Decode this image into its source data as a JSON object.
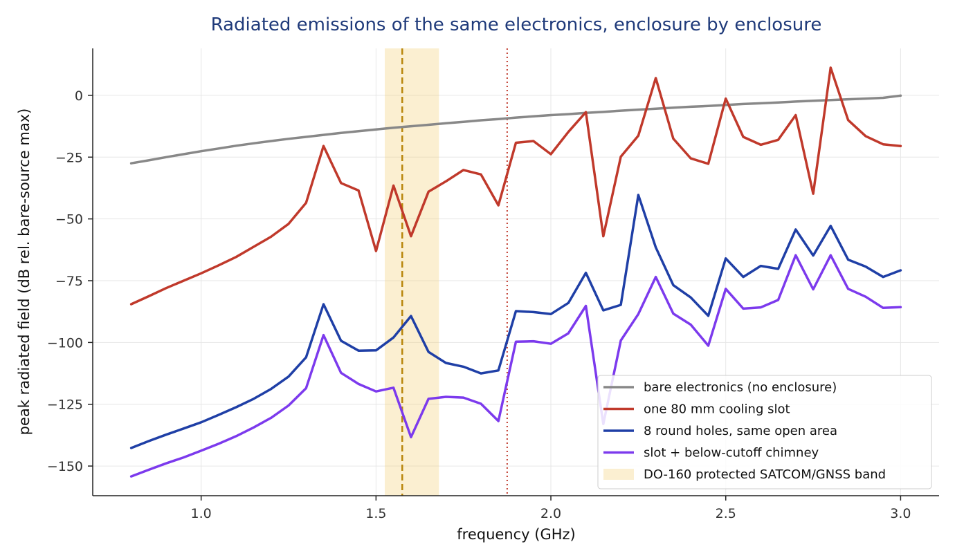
{
  "chart_data": {
    "type": "line",
    "title": "Radiated emissions of the same electronics, enclosure by enclosure",
    "xlabel": "frequency (GHz)",
    "ylabel": "peak radiated field (dB rel. bare-source max)",
    "xlim": [
      0.69,
      3.11
    ],
    "ylim": [
      -162,
      19
    ],
    "xticks": [
      1.0,
      1.5,
      2.0,
      2.5,
      3.0
    ],
    "xtick_labels": [
      "1.0",
      "1.5",
      "2.0",
      "2.5",
      "3.0"
    ],
    "yticks": [
      0,
      -25,
      -50,
      -75,
      -100,
      -125,
      -150
    ],
    "ytick_labels": [
      "0",
      "−25",
      "−50",
      "−75",
      "−100",
      "−125",
      "−150"
    ],
    "grid": true,
    "legend_position": "lower-right",
    "x": [
      0.8,
      0.85,
      0.9,
      0.95,
      1.0,
      1.05,
      1.1,
      1.15,
      1.2,
      1.25,
      1.3,
      1.35,
      1.4,
      1.45,
      1.5,
      1.55,
      1.6,
      1.65,
      1.7,
      1.75,
      1.8,
      1.85,
      1.9,
      1.95,
      2.0,
      2.05,
      2.1,
      2.15,
      2.2,
      2.25,
      2.3,
      2.35,
      2.4,
      2.45,
      2.5,
      2.55,
      2.6,
      2.65,
      2.7,
      2.75,
      2.8,
      2.85,
      2.9,
      2.95,
      3.0
    ],
    "series": [
      {
        "name": "bare electronics (no enclosure)",
        "color": "#888888",
        "values": [
          -27.5,
          -26.3,
          -25.0,
          -23.8,
          -22.6,
          -21.5,
          -20.4,
          -19.4,
          -18.5,
          -17.6,
          -16.8,
          -16.0,
          -15.2,
          -14.5,
          -13.8,
          -13.1,
          -12.5,
          -11.9,
          -11.3,
          -10.7,
          -10.1,
          -9.6,
          -9.0,
          -8.5,
          -8.0,
          -7.6,
          -7.1,
          -6.7,
          -6.2,
          -5.8,
          -5.4,
          -5.0,
          -4.6,
          -4.3,
          -3.9,
          -3.5,
          -3.2,
          -2.9,
          -2.5,
          -2.2,
          -1.9,
          -1.6,
          -1.3,
          -1.0,
          -0.1
        ]
      },
      {
        "name": "one 80 mm cooling slot",
        "color": "#c0392b",
        "values": [
          -84.5,
          -81.3,
          -78.0,
          -75.0,
          -72.0,
          -68.8,
          -65.4,
          -61.3,
          -57.2,
          -52.0,
          -43.5,
          -20.5,
          -35.5,
          -38.5,
          -63.0,
          -36.5,
          -57.0,
          -39.0,
          -34.8,
          -30.2,
          -32.0,
          -44.5,
          -19.2,
          -18.5,
          -23.8,
          -14.8,
          -6.8,
          -57.0,
          -24.8,
          -16.3,
          7.0,
          -17.5,
          -25.5,
          -27.7,
          -1.3,
          -16.8,
          -20.0,
          -18.0,
          -8.0,
          -39.8,
          11.2,
          -10.0,
          -16.5,
          -19.8,
          -20.5
        ]
      },
      {
        "name": "8 round holes, same open area",
        "color": "#1f3fa6",
        "values": [
          -142.7,
          -139.9,
          -137.3,
          -134.8,
          -132.3,
          -129.3,
          -126.2,
          -122.8,
          -118.8,
          -113.8,
          -106.0,
          -84.5,
          -99.3,
          -103.3,
          -103.2,
          -98.0,
          -89.3,
          -103.8,
          -108.3,
          -109.8,
          -112.5,
          -111.3,
          -87.3,
          -87.7,
          -88.5,
          -84.0,
          -71.8,
          -87.0,
          -84.8,
          -40.3,
          -61.5,
          -76.8,
          -81.8,
          -89.2,
          -66.0,
          -73.5,
          -69.0,
          -70.2,
          -54.3,
          -64.8,
          -52.8,
          -66.5,
          -69.3,
          -73.5,
          -70.8
        ]
      },
      {
        "name": "slot + below-cutoff chimney",
        "color": "#7c3aed",
        "values": [
          -154.2,
          -151.5,
          -148.9,
          -146.5,
          -143.8,
          -141.0,
          -137.9,
          -134.4,
          -130.5,
          -125.5,
          -118.5,
          -97.0,
          -112.3,
          -116.8,
          -119.8,
          -118.3,
          -138.3,
          -122.8,
          -122.0,
          -122.3,
          -124.8,
          -131.8,
          -99.7,
          -99.5,
          -100.5,
          -96.3,
          -85.2,
          -133.0,
          -99.2,
          -88.5,
          -73.5,
          -88.3,
          -92.8,
          -101.3,
          -78.3,
          -86.3,
          -85.8,
          -82.8,
          -64.7,
          -78.5,
          -64.7,
          -78.3,
          -81.5,
          -86.0,
          -85.7
        ]
      }
    ],
    "shaded_band": {
      "name": "DO-160 protected SATCOM/GNSS band",
      "x_start": 1.525,
      "x_end": 1.68,
      "color": "#f3d27a"
    },
    "vertical_lines": [
      {
        "x": 1.575,
        "style": "dashed",
        "color": "#b8860b"
      },
      {
        "x": 1.875,
        "style": "dotted",
        "color": "#c0392b"
      }
    ]
  }
}
